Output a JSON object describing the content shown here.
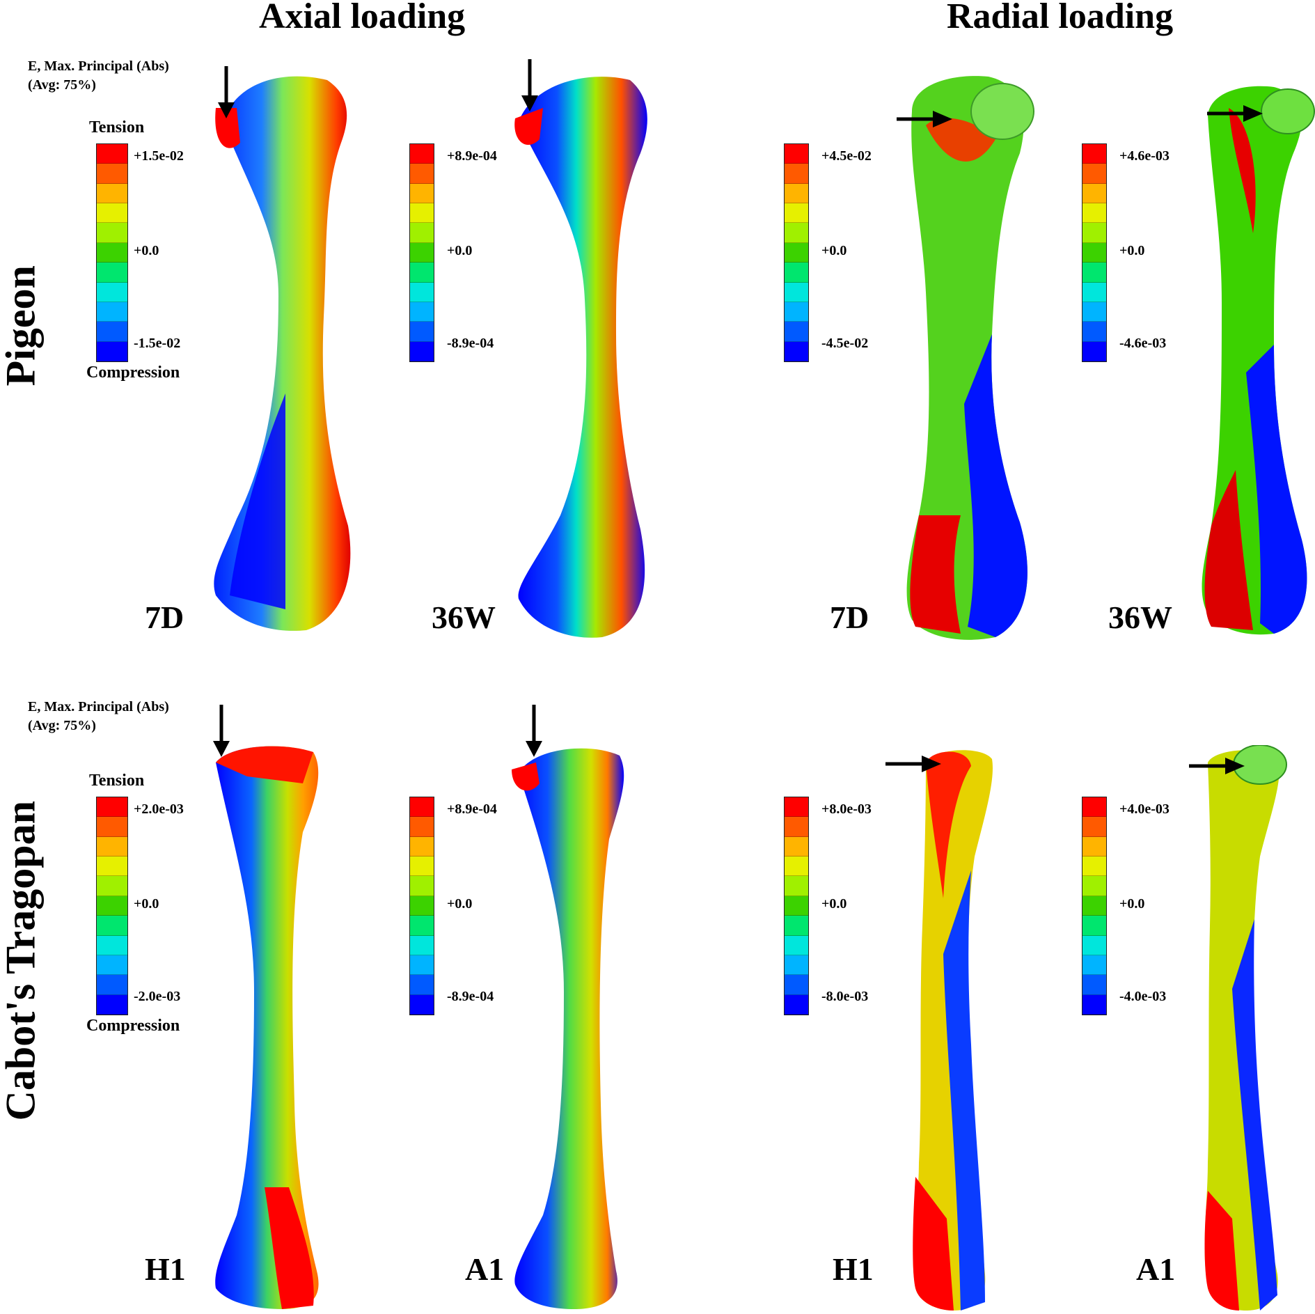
{
  "columns": {
    "axial": "Axial loading",
    "radial": "Radial loading"
  },
  "rows": {
    "pigeon": "Pigeon",
    "tragopan": "Cabot's Tragopan"
  },
  "legend": {
    "variable": "E, Max. Principal (Abs)",
    "averaging": "(Avg: 75%)",
    "tension_label": "Tension",
    "compression_label": "Compression"
  },
  "color_scale": [
    "#ff0000",
    "#ff5a00",
    "#ffb400",
    "#e6f000",
    "#a0f000",
    "#3cd200",
    "#00e66e",
    "#00e6dc",
    "#00b4ff",
    "#005aff",
    "#0000ff"
  ],
  "panels": [
    {
      "row": "pigeon",
      "loading": "axial",
      "specimen": "7D",
      "max": "+1.5e-02",
      "mid": "+0.0",
      "min": "-1.5e-02",
      "arrow": "down"
    },
    {
      "row": "pigeon",
      "loading": "axial",
      "specimen": "36W",
      "max": "+8.9e-04",
      "mid": "+0.0",
      "min": "-8.9e-04",
      "arrow": "down"
    },
    {
      "row": "pigeon",
      "loading": "radial",
      "specimen": "7D",
      "max": "+4.5e-02",
      "mid": "+0.0",
      "min": "-4.5e-02",
      "arrow": "right"
    },
    {
      "row": "pigeon",
      "loading": "radial",
      "specimen": "36W",
      "max": "+4.6e-03",
      "mid": "+0.0",
      "min": "-4.6e-03",
      "arrow": "right"
    },
    {
      "row": "tragopan",
      "loading": "axial",
      "specimen": "H1",
      "max": "+2.0e-03",
      "mid": "+0.0",
      "min": "-2.0e-03",
      "arrow": "down"
    },
    {
      "row": "tragopan",
      "loading": "axial",
      "specimen": "A1",
      "max": "+8.9e-04",
      "mid": "+0.0",
      "min": "-8.9e-04",
      "arrow": "down"
    },
    {
      "row": "tragopan",
      "loading": "radial",
      "specimen": "H1",
      "max": "+8.0e-03",
      "mid": "+0.0",
      "min": "-8.0e-03",
      "arrow": "right"
    },
    {
      "row": "tragopan",
      "loading": "radial",
      "specimen": "A1",
      "max": "+4.0e-03",
      "mid": "+0.0",
      "min": "-4.0e-03",
      "arrow": "right"
    }
  ]
}
